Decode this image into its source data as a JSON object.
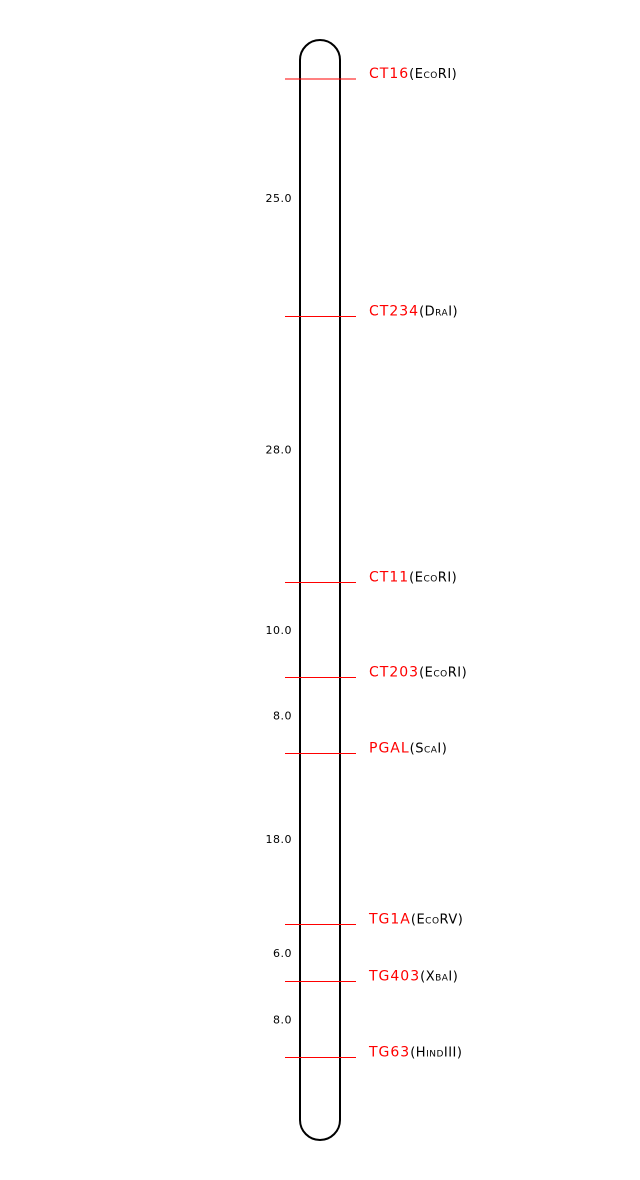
{
  "colors": {
    "marker_label": "#ff0000",
    "marker_line": "#ff0000",
    "chromosome": "#000000"
  },
  "markers": [
    {
      "name": "CT16",
      "enzyme": "(EcoRI)"
    },
    {
      "name": "CT234",
      "enzyme": "(DraI)"
    },
    {
      "name": "CT11",
      "enzyme": "(EcoRI)"
    },
    {
      "name": "CT203",
      "enzyme": "(EcoRI)"
    },
    {
      "name": "PGAL",
      "enzyme": "(ScaI)"
    },
    {
      "name": "TG1A",
      "enzyme": "(EcoRV)"
    },
    {
      "name": "TG403",
      "enzyme": "(XbaI)"
    },
    {
      "name": "TG63",
      "enzyme": "(HindIII)"
    }
  ],
  "intervals": [
    "25.0",
    "28.0",
    "10.0",
    "8.0",
    "18.0",
    "6.0",
    "8.0"
  ]
}
